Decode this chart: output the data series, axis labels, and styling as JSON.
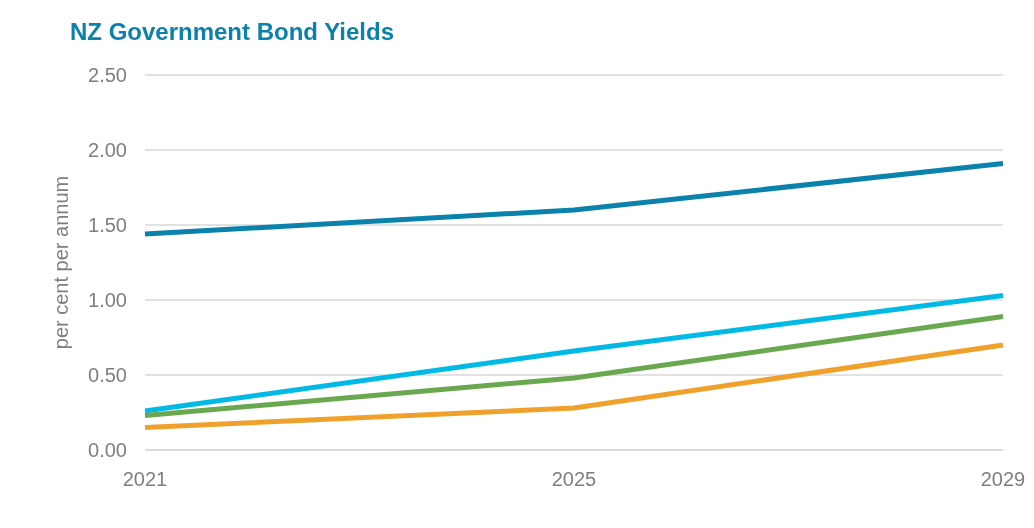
{
  "chart_data": {
    "type": "line",
    "title": "NZ Government Bond Yields",
    "ylabel": "per cent per annum",
    "x": [
      2021,
      2025,
      2029
    ],
    "xlim": [
      2021,
      2029
    ],
    "xticks": [
      2021,
      2025,
      2029
    ],
    "ylim": [
      0,
      2.5
    ],
    "yticks": [
      {
        "value": 0,
        "label": "0.00"
      },
      {
        "value": 0.5,
        "label": "0.50"
      },
      {
        "value": 1,
        "label": "1.00"
      },
      {
        "value": 1.5,
        "label": "1.50"
      },
      {
        "value": 2,
        "label": "2.00"
      },
      {
        "value": 2.5,
        "label": "2.50"
      }
    ],
    "grid": "y",
    "marker": "none",
    "line_style": "solid",
    "series": [
      {
        "color": "#0a82ab",
        "values": [
          1.44,
          1.6,
          1.91
        ]
      },
      {
        "color": "#00b9e4",
        "values": [
          0.26,
          0.66,
          1.03
        ]
      },
      {
        "color": "#6aa84f",
        "values": [
          0.23,
          0.48,
          0.89
        ]
      },
      {
        "color": "#f0a12c",
        "values": [
          0.15,
          0.28,
          0.7
        ]
      }
    ]
  }
}
